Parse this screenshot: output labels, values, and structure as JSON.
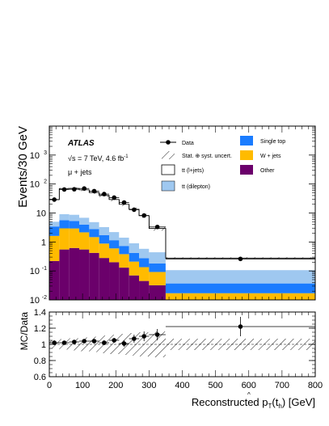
{
  "chart_data": {
    "type": "stacked-histogram",
    "ylabel": "Events/30 GeV",
    "xlabel_main": "Reconstructed p",
    "xlabel_sub": "T",
    "xlabel_paren": "(t",
    "xlabel_hat": "^",
    "xlabel_hsub": "h",
    "xlabel_unit": ") [GeV]",
    "atlas_label": "ATLAS",
    "energy_text": "√s = 7 TeV, 4.6 fb",
    "energy_sup": "-1",
    "channel": "μ + jets",
    "x_range": [
      0,
      800
    ],
    "ylim": [
      0.01,
      10000
    ],
    "ylog": true,
    "x_ticks": [
      "0",
      "100",
      "200",
      "300",
      "400",
      "500",
      "600",
      "700",
      "800"
    ],
    "y_ticks": [
      {
        "base": "10",
        "exp": "-2",
        "v": 0.01
      },
      {
        "base": "10",
        "exp": "-1",
        "v": 0.1
      },
      {
        "base": "1",
        "exp": "",
        "v": 1
      },
      {
        "base": "10",
        "exp": "",
        "v": 10
      },
      {
        "base": "10",
        "exp": "2",
        "v": 100
      },
      {
        "base": "10",
        "exp": "3",
        "v": 1000
      }
    ],
    "bins": [
      0,
      30,
      60,
      90,
      120,
      150,
      180,
      210,
      240,
      270,
      300,
      350,
      800
    ],
    "series": [
      {
        "name": "Other",
        "color": "#6b006b",
        "values": [
          0.22,
          0.55,
          0.62,
          0.55,
          0.42,
          0.28,
          0.2,
          0.13,
          0.07,
          0.045,
          0.032,
          0.006
        ]
      },
      {
        "name": "W + jets",
        "color": "#ffbb00",
        "values": [
          1.4,
          2.4,
          2.3,
          1.6,
          1.05,
          0.6,
          0.4,
          0.25,
          0.14,
          0.09,
          0.06,
          0.011
        ]
      },
      {
        "name": "Single top",
        "color": "#1a7cff",
        "values": [
          1.8,
          2.7,
          2.4,
          1.85,
          1.3,
          0.85,
          0.55,
          0.35,
          0.21,
          0.14,
          0.09,
          0.02
        ]
      },
      {
        "name": "tt (dilepton)",
        "color": "#9fc8f0",
        "values": [
          1.6,
          3.5,
          3.4,
          2.9,
          2.1,
          1.55,
          1.05,
          0.68,
          0.48,
          0.31,
          0.26,
          0.07
        ]
      },
      {
        "name": "tt (l+jets)",
        "color": "#ffffff",
        "values": [
          24,
          60,
          62,
          56,
          46,
          37,
          27,
          18.5,
          12.5,
          7.5,
          2.5,
          0.17
        ]
      }
    ],
    "data_points": [
      {
        "x": 15,
        "y": 29
      },
      {
        "x": 45,
        "y": 65
      },
      {
        "x": 75,
        "y": 66
      },
      {
        "x": 105,
        "y": 70
      },
      {
        "x": 135,
        "y": 57
      },
      {
        "x": 165,
        "y": 45
      },
      {
        "x": 195,
        "y": 34
      },
      {
        "x": 225,
        "y": 23
      },
      {
        "x": 255,
        "y": 13
      },
      {
        "x": 285,
        "y": 8.2
      },
      {
        "x": 325,
        "y": 3.3
      },
      {
        "x": 575,
        "y": 0.26
      }
    ],
    "legend": {
      "data": "Data",
      "single_top": "Single top",
      "uncert": "Stat. ⊕ syst. uncert.",
      "wjets": "W + jets",
      "ljets": "tt (l+jets)",
      "other": "Other",
      "dilep": "tt (dilepton)"
    },
    "ratio": {
      "ylabel": "MC/Data",
      "ylim": [
        0.6,
        1.4
      ],
      "y_ticks": [
        "0.6",
        "0.8",
        "1",
        "1.2",
        "1.4"
      ],
      "points": [
        {
          "x": 15,
          "y": 1.02,
          "err": 0.03
        },
        {
          "x": 45,
          "y": 1.02,
          "err": 0.02
        },
        {
          "x": 75,
          "y": 1.03,
          "err": 0.02
        },
        {
          "x": 105,
          "y": 1.04,
          "err": 0.02
        },
        {
          "x": 135,
          "y": 1.04,
          "err": 0.02
        },
        {
          "x": 165,
          "y": 1.02,
          "err": 0.03
        },
        {
          "x": 195,
          "y": 1.05,
          "err": 0.03
        },
        {
          "x": 225,
          "y": 1.01,
          "err": 0.04
        },
        {
          "x": 255,
          "y": 1.07,
          "err": 0.05
        },
        {
          "x": 285,
          "y": 1.1,
          "err": 0.06
        },
        {
          "x": 325,
          "y": 1.12,
          "err": 0.07
        },
        {
          "x": 575,
          "y": 1.22,
          "err": 0.12
        }
      ],
      "band": [
        0.05,
        0.065,
        0.075,
        0.085,
        0.095,
        0.11,
        0.12,
        0.13,
        0.14,
        0.15,
        0.16,
        0.07
      ]
    }
  }
}
